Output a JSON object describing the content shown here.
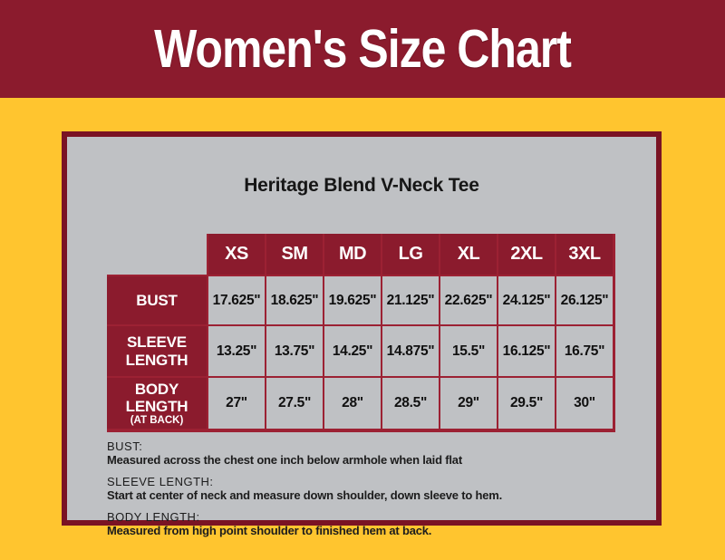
{
  "banner": {
    "title": "Women's Size Chart"
  },
  "card": {
    "product_title": "Heritage Blend V-Neck Tee",
    "notes": [
      {
        "term": "BUST:",
        "text": "Measured across the chest one inch below armhole when laid flat"
      },
      {
        "term": "SLEEVE LENGTH:",
        "text": "Start at center of neck and measure down shoulder, down sleeve to hem."
      },
      {
        "term": "BODY LENGTH:",
        "text": "Measured from high point shoulder to finished hem at back."
      }
    ]
  },
  "chart_data": {
    "type": "table",
    "title": "Heritage Blend V-Neck Tee",
    "categories": [
      "XS",
      "SM",
      "MD",
      "LG",
      "XL",
      "2XL",
      "3XL"
    ],
    "rows": [
      {
        "label": "BUST",
        "sublabel": "",
        "values": [
          "17.625\"",
          "18.625\"",
          "19.625\"",
          "21.125\"",
          "22.625\"",
          "24.125\"",
          "26.125\""
        ]
      },
      {
        "label": "SLEEVE LENGTH",
        "sublabel": "",
        "values": [
          "13.25\"",
          "13.75\"",
          "14.25\"",
          "14.875\"",
          "15.5\"",
          "16.125\"",
          "16.75\""
        ]
      },
      {
        "label": "BODY LENGTH",
        "sublabel": "(AT BACK)",
        "values": [
          "27\"",
          "27.5\"",
          "28\"",
          "28.5\"",
          "29\"",
          "29.5\"",
          "30\""
        ]
      }
    ],
    "units": "inches",
    "layout": "row labels left, size columns across top"
  },
  "colors": {
    "maroon": "#8b1b2d",
    "maroon_dark": "#7a1324",
    "gridline": "#9c2133",
    "yellow": "#ffc52f",
    "panel_gray": "#bfc1c4",
    "header_text": "#ffffff",
    "body_text": "#161616"
  }
}
